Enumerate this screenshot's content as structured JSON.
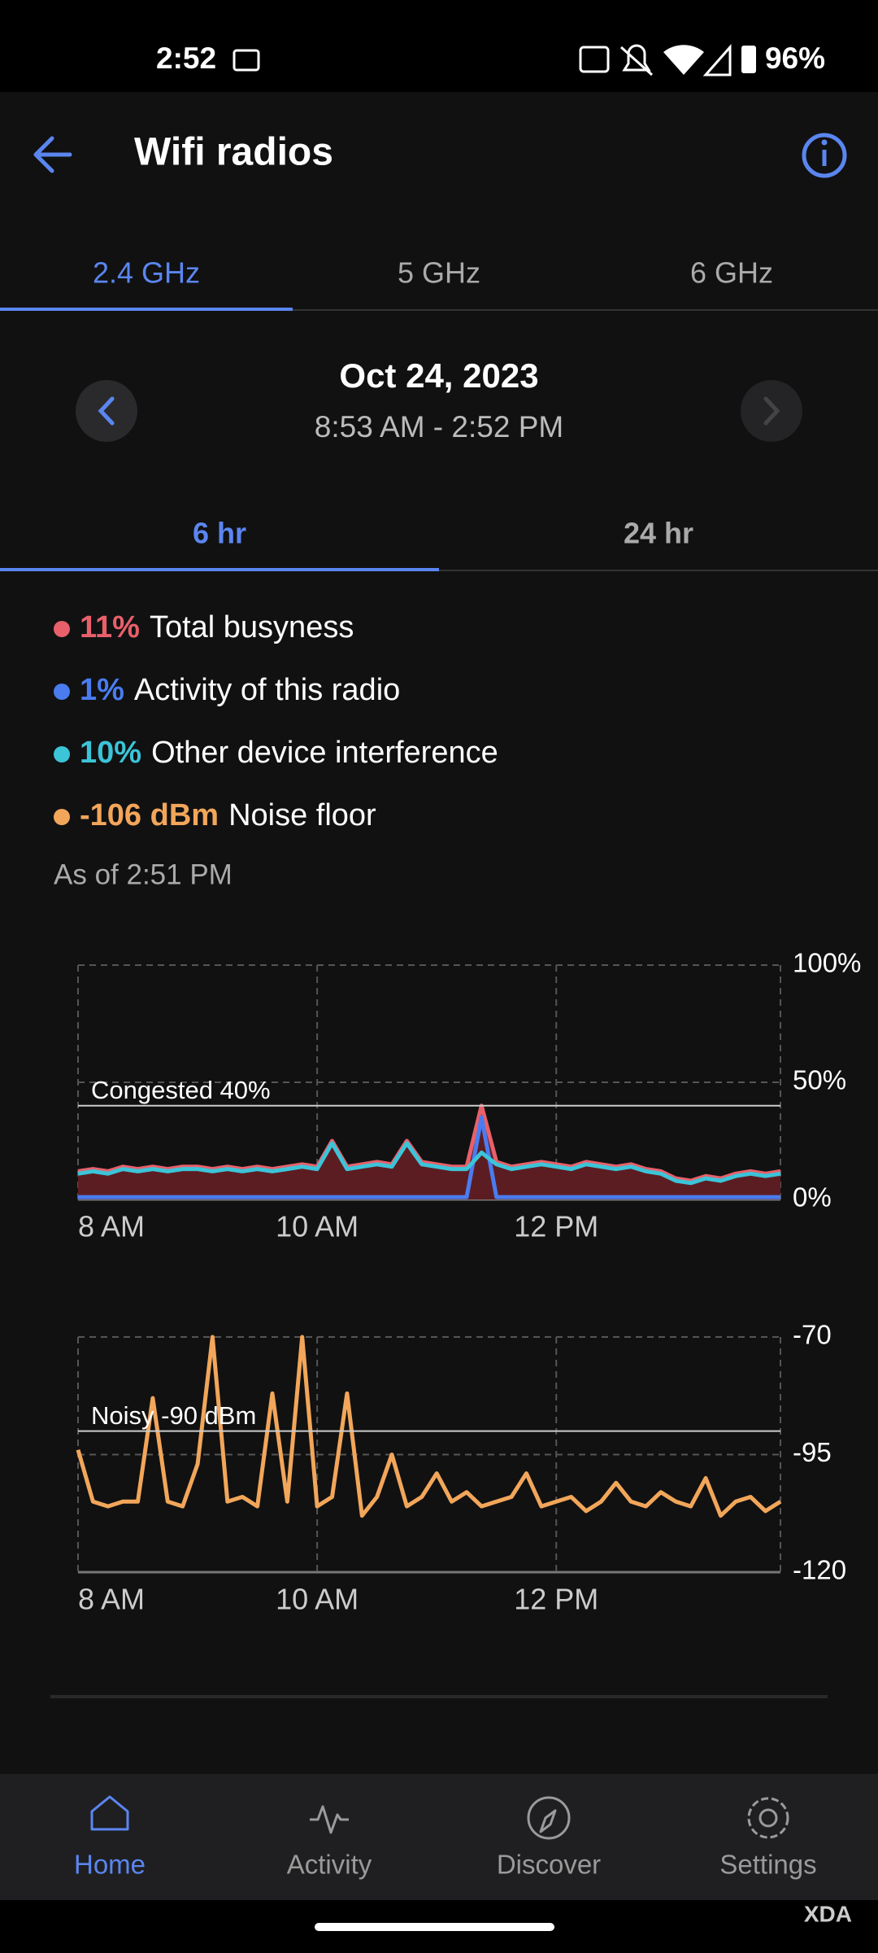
{
  "status_bar": {
    "time": "2:52",
    "battery": "96%"
  },
  "header": {
    "title": "Wifi radios"
  },
  "band_tabs": {
    "items": [
      "2.4 GHz",
      "5 GHz",
      "6 GHz"
    ],
    "selected": 0
  },
  "date_picker": {
    "date": "Oct 24, 2023",
    "range": "8:53 AM - 2:52 PM"
  },
  "range_tabs": {
    "items": [
      "6 hr",
      "24 hr"
    ],
    "selected": 0
  },
  "as_of": "As of 2:51 PM",
  "charts": [
    {
      "type": "line",
      "x": [
        8,
        8.125,
        8.25,
        8.375,
        8.5,
        8.625,
        8.75,
        8.875,
        9,
        9.125,
        9.25,
        9.375,
        9.5,
        9.625,
        9.75,
        9.875,
        10,
        10.125,
        10.25,
        10.375,
        10.5,
        10.625,
        10.75,
        10.875,
        11,
        11.125,
        11.25,
        11.375,
        11.5,
        11.625,
        11.75,
        11.875,
        12,
        12.125,
        12.25,
        12.375,
        12.5,
        12.625,
        12.75,
        12.875,
        13,
        13.125,
        13.25,
        13.375,
        13.5,
        13.625,
        13.75,
        13.875
      ],
      "xlim": [
        8,
        13.875
      ],
      "xticks": [
        {
          "value": 8,
          "label": "8 AM"
        },
        {
          "value": 10,
          "label": "10 AM"
        },
        {
          "value": 12,
          "label": "12 PM"
        }
      ],
      "ylim": [
        0,
        100
      ],
      "yticks": [
        {
          "value": 0,
          "label": "0%"
        },
        {
          "value": 50,
          "label": "50%"
        },
        {
          "value": 100,
          "label": "100%"
        }
      ],
      "threshold": {
        "value": 40,
        "label": "Congested 40%"
      },
      "series": [
        {
          "name": "Total busyness",
          "summary": "11%",
          "color": "#e8606a",
          "area_color": "#5c1d22",
          "values": [
            12,
            13,
            12,
            14,
            13,
            14,
            13,
            14,
            14,
            13,
            14,
            13,
            14,
            13,
            14,
            15,
            14,
            25,
            14,
            15,
            16,
            15,
            25,
            16,
            15,
            14,
            14,
            40,
            16,
            14,
            15,
            16,
            15,
            14,
            16,
            15,
            14,
            15,
            13,
            12,
            9,
            8,
            10,
            9,
            11,
            12,
            11,
            12
          ]
        },
        {
          "name": "Activity of this radio",
          "summary": "1%",
          "color": "#4a7cf0",
          "values": [
            1,
            1,
            1,
            1,
            1,
            1,
            1,
            1,
            1,
            1,
            1,
            1,
            1,
            1,
            1,
            1,
            1,
            1,
            1,
            1,
            1,
            1,
            1,
            1,
            1,
            1,
            1,
            35,
            1,
            1,
            1,
            1,
            1,
            1,
            1,
            1,
            1,
            1,
            1,
            1,
            1,
            1,
            1,
            1,
            1,
            1,
            1,
            1
          ]
        },
        {
          "name": "Other device interference",
          "summary": "10%",
          "color": "#3cc4d8",
          "values": [
            11,
            12,
            11,
            13,
            12,
            13,
            12,
            13,
            13,
            12,
            13,
            12,
            13,
            12,
            13,
            14,
            13,
            24,
            13,
            14,
            15,
            14,
            24,
            15,
            14,
            13,
            13,
            20,
            15,
            13,
            14,
            15,
            14,
            13,
            15,
            14,
            13,
            14,
            12,
            11,
            8,
            7,
            9,
            8,
            10,
            11,
            10,
            11
          ]
        }
      ]
    },
    {
      "type": "line",
      "x": [
        8,
        8.125,
        8.25,
        8.375,
        8.5,
        8.625,
        8.75,
        8.875,
        9,
        9.125,
        9.25,
        9.375,
        9.5,
        9.625,
        9.75,
        9.875,
        10,
        10.125,
        10.25,
        10.375,
        10.5,
        10.625,
        10.75,
        10.875,
        11,
        11.125,
        11.25,
        11.375,
        11.5,
        11.625,
        11.75,
        11.875,
        12,
        12.125,
        12.25,
        12.375,
        12.5,
        12.625,
        12.75,
        12.875,
        13,
        13.125,
        13.25,
        13.375,
        13.5,
        13.625,
        13.75,
        13.875
      ],
      "xlim": [
        8,
        13.875
      ],
      "xticks": [
        {
          "value": 8,
          "label": "8 AM"
        },
        {
          "value": 10,
          "label": "10 AM"
        },
        {
          "value": 12,
          "label": "12 PM"
        }
      ],
      "ylim": [
        -120,
        -70
      ],
      "yticks": [
        -120,
        -95,
        -70
      ],
      "threshold": {
        "value": -90,
        "label": "Noisy -90 dBm"
      },
      "series": [
        {
          "name": "Noise floor",
          "summary": "-106 dBm",
          "color": "#f2a65a",
          "values": [
            -94,
            -105,
            -106,
            -105,
            -105,
            -83,
            -105,
            -106,
            -97,
            -70,
            -105,
            -104,
            -106,
            -82,
            -105,
            -70,
            -106,
            -104,
            -82,
            -108,
            -104,
            -95,
            -106,
            -104,
            -99,
            -105,
            -103,
            -106,
            -105,
            -104,
            -99,
            -106,
            -105,
            -104,
            -107,
            -105,
            -101,
            -105,
            -106,
            -103,
            -105,
            -106,
            -100,
            -108,
            -105,
            -104,
            -107,
            -105
          ]
        }
      ]
    }
  ],
  "nav": {
    "items": [
      "Home",
      "Activity",
      "Discover",
      "Settings"
    ],
    "selected": 0
  },
  "watermark": "XDA"
}
